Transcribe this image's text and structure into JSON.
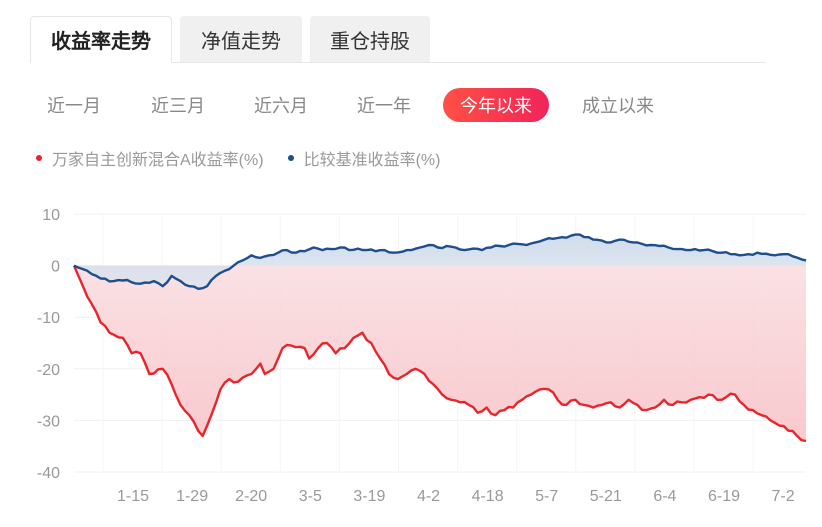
{
  "tabs": [
    {
      "label": "收益率走势",
      "active": true
    },
    {
      "label": "净值走势",
      "active": false
    },
    {
      "label": "重仓持股",
      "active": false
    }
  ],
  "periods": [
    {
      "label": "近一月",
      "active": false
    },
    {
      "label": "近三月",
      "active": false
    },
    {
      "label": "近六月",
      "active": false
    },
    {
      "label": "近一年",
      "active": false
    },
    {
      "label": "今年以来",
      "active": true
    },
    {
      "label": "成立以来",
      "active": false
    }
  ],
  "colors": {
    "fund": "#e6262c",
    "benchmark": "#1f4e8c",
    "accent_start": "#ff5045",
    "accent_end": "#f0245a"
  },
  "chart_data": {
    "type": "line",
    "ylim": [
      -40,
      10
    ],
    "yticks": [
      "10",
      "0",
      "-10",
      "-20",
      "-30",
      "-40"
    ],
    "xtick_labels": [
      "1-15",
      "1-29",
      "2-20",
      "3-5",
      "3-19",
      "4-2",
      "4-18",
      "5-7",
      "5-21",
      "6-4",
      "6-19",
      "7-2"
    ],
    "grid": true,
    "legend_position": "top-left",
    "x_count": 125,
    "series": [
      {
        "name": "万家自主创新混合A收益率(%)",
        "color": "#e6262c",
        "anchors": [
          [
            0,
            0
          ],
          [
            3,
            -6
          ],
          [
            5,
            -9
          ],
          [
            6,
            -11
          ],
          [
            8,
            -13
          ],
          [
            11,
            -14
          ],
          [
            13,
            -17
          ],
          [
            15,
            -17
          ],
          [
            17,
            -21
          ],
          [
            20,
            -20
          ],
          [
            22,
            -23
          ],
          [
            24,
            -27
          ],
          [
            26,
            -29
          ],
          [
            29,
            -33
          ],
          [
            30,
            -31
          ],
          [
            33,
            -24
          ],
          [
            35,
            -22
          ],
          [
            37,
            -22.5
          ],
          [
            40,
            -21
          ],
          [
            42,
            -19
          ],
          [
            43,
            -21
          ],
          [
            45,
            -20
          ],
          [
            47,
            -16
          ],
          [
            49,
            -15.5
          ],
          [
            52,
            -16
          ],
          [
            53,
            -18
          ],
          [
            55,
            -16
          ],
          [
            57,
            -15
          ],
          [
            59,
            -17
          ],
          [
            61,
            -16
          ],
          [
            63,
            -14
          ],
          [
            65,
            -13
          ],
          [
            67,
            -15
          ],
          [
            69,
            -18
          ],
          [
            71,
            -21
          ],
          [
            73,
            -22
          ],
          [
            75,
            -21
          ],
          [
            77,
            -20
          ],
          [
            79,
            -21
          ],
          [
            81,
            -23
          ],
          [
            83,
            -25
          ],
          [
            85,
            -26
          ],
          [
            87,
            -26.5
          ],
          [
            89,
            -27
          ],
          [
            91,
            -28.5
          ],
          [
            93,
            -27.5
          ],
          [
            95,
            -29
          ],
          [
            97,
            -28
          ],
          [
            99,
            -27.5
          ],
          [
            101,
            -26
          ],
          [
            103,
            -25
          ],
          [
            105,
            -24
          ],
          [
            107,
            -24
          ],
          [
            109,
            -26
          ],
          [
            111,
            -27
          ],
          [
            113,
            -26
          ],
          [
            115,
            -27
          ],
          [
            117,
            -27.5
          ],
          [
            119,
            -27
          ],
          [
            121,
            -26.5
          ],
          [
            123,
            -27.5
          ],
          [
            125,
            -26
          ],
          [
            127,
            -27
          ],
          [
            129,
            -28
          ],
          [
            131,
            -27.5
          ],
          [
            133,
            -26
          ],
          [
            135,
            -27
          ],
          [
            137,
            -26.5
          ],
          [
            139,
            -26
          ],
          [
            141,
            -25.5
          ],
          [
            143,
            -25
          ],
          [
            145,
            -26
          ],
          [
            147,
            -25.5
          ],
          [
            149,
            -25
          ],
          [
            151,
            -27
          ],
          [
            153,
            -28
          ],
          [
            155,
            -29
          ],
          [
            157,
            -30
          ],
          [
            159,
            -31
          ],
          [
            161,
            -32
          ],
          [
            163,
            -33
          ],
          [
            165,
            -34
          ]
        ]
      },
      {
        "name": "比较基准收益率(%)",
        "color": "#1f4e8c",
        "anchors": [
          [
            0,
            0
          ],
          [
            3,
            -1
          ],
          [
            6,
            -2.5
          ],
          [
            9,
            -3
          ],
          [
            12,
            -2.8
          ],
          [
            15,
            -3.5
          ],
          [
            18,
            -3
          ],
          [
            20,
            -4
          ],
          [
            22,
            -2
          ],
          [
            24,
            -3
          ],
          [
            26,
            -4
          ],
          [
            28,
            -4.5
          ],
          [
            30,
            -4
          ],
          [
            32,
            -2
          ],
          [
            34,
            -1
          ],
          [
            36,
            0
          ],
          [
            38,
            1
          ],
          [
            40,
            2
          ],
          [
            42,
            1.5
          ],
          [
            44,
            2
          ],
          [
            46,
            2.5
          ],
          [
            48,
            3
          ],
          [
            50,
            2.5
          ],
          [
            52,
            2.8
          ],
          [
            54,
            3.5
          ],
          [
            56,
            3
          ],
          [
            58,
            3.2
          ],
          [
            60,
            3.5
          ],
          [
            62,
            3
          ],
          [
            64,
            3.3
          ],
          [
            66,
            3
          ],
          [
            68,
            2.8
          ],
          [
            70,
            3
          ],
          [
            72,
            2.5
          ],
          [
            74,
            2.7
          ],
          [
            76,
            3
          ],
          [
            78,
            3.5
          ],
          [
            80,
            4
          ],
          [
            82,
            3.5
          ],
          [
            84,
            3.8
          ],
          [
            86,
            3.5
          ],
          [
            88,
            3
          ],
          [
            90,
            3.3
          ],
          [
            92,
            3
          ],
          [
            94,
            3.5
          ],
          [
            96,
            3.8
          ],
          [
            98,
            4
          ],
          [
            100,
            4.2
          ],
          [
            102,
            4
          ],
          [
            104,
            4.5
          ],
          [
            106,
            5
          ],
          [
            108,
            5.2
          ],
          [
            110,
            5.5
          ],
          [
            112,
            5.8
          ],
          [
            114,
            6
          ],
          [
            116,
            5.5
          ],
          [
            118,
            5
          ],
          [
            120,
            4.5
          ],
          [
            122,
            4.8
          ],
          [
            124,
            5
          ],
          [
            126,
            4.5
          ],
          [
            128,
            4.2
          ],
          [
            130,
            4
          ],
          [
            132,
            3.8
          ],
          [
            134,
            3.5
          ],
          [
            136,
            3.2
          ],
          [
            138,
            3
          ],
          [
            140,
            3.2
          ],
          [
            142,
            3
          ],
          [
            144,
            2.8
          ],
          [
            146,
            2.5
          ],
          [
            148,
            2.2
          ],
          [
            150,
            2
          ],
          [
            152,
            2.2
          ],
          [
            154,
            2.5
          ],
          [
            156,
            2.3
          ],
          [
            158,
            2
          ],
          [
            160,
            2.2
          ],
          [
            162,
            1.8
          ],
          [
            164,
            1.2
          ],
          [
            165,
            1
          ]
        ]
      }
    ]
  }
}
